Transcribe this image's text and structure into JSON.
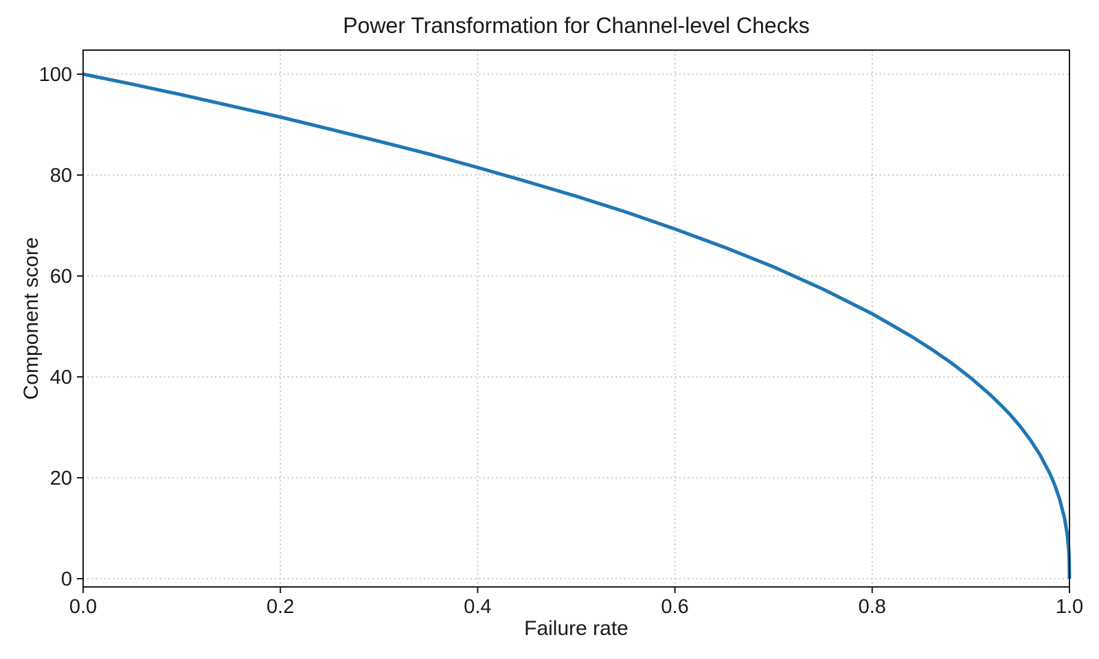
{
  "chart_data": {
    "type": "line",
    "title": "Power Transformation for Channel-level Checks",
    "xlabel": "Failure rate",
    "ylabel": "Component score",
    "xlim": [
      0.0,
      1.0
    ],
    "ylim": [
      -2,
      105
    ],
    "xticks": [
      0.0,
      0.2,
      0.4,
      0.6,
      0.8,
      1.0
    ],
    "xtick_labels": [
      "0.0",
      "0.2",
      "0.4",
      "0.6",
      "0.8",
      "1.0"
    ],
    "yticks": [
      0,
      20,
      40,
      60,
      80,
      100
    ],
    "ytick_labels": [
      "0",
      "20",
      "40",
      "60",
      "80",
      "100"
    ],
    "grid": true,
    "grid_style": "dotted",
    "legend": false,
    "line_color": "#1f77b4",
    "line_width": 5,
    "power_exponent": 0.4,
    "series": [
      {
        "points": [
          [
            0.0,
            100.0
          ],
          [
            0.05,
            98.0
          ],
          [
            0.1,
            95.9
          ],
          [
            0.15,
            93.7
          ],
          [
            0.2,
            91.5
          ],
          [
            0.25,
            89.1
          ],
          [
            0.3,
            86.7
          ],
          [
            0.35,
            84.2
          ],
          [
            0.4,
            81.5
          ],
          [
            0.45,
            78.7
          ],
          [
            0.5,
            75.8
          ],
          [
            0.55,
            72.7
          ],
          [
            0.6,
            69.3
          ],
          [
            0.65,
            65.7
          ],
          [
            0.7,
            61.8
          ],
          [
            0.75,
            57.4
          ],
          [
            0.8,
            52.5
          ],
          [
            0.84,
            48.0
          ],
          [
            0.86,
            45.5
          ],
          [
            0.88,
            42.8
          ],
          [
            0.9,
            39.8
          ],
          [
            0.92,
            36.4
          ],
          [
            0.93,
            34.5
          ],
          [
            0.94,
            32.5
          ],
          [
            0.95,
            30.2
          ],
          [
            0.96,
            27.6
          ],
          [
            0.97,
            24.6
          ],
          [
            0.98,
            20.9
          ],
          [
            0.985,
            18.6
          ],
          [
            0.99,
            15.8
          ],
          [
            0.995,
            12.0
          ],
          [
            0.9975,
            9.1
          ],
          [
            0.998,
            8.3
          ],
          [
            0.999,
            6.3
          ],
          [
            0.9995,
            4.8
          ],
          [
            0.99975,
            3.6
          ],
          [
            1.0,
            0.0
          ]
        ]
      }
    ],
    "colors": {
      "line": "#1f77b4",
      "grid": "#c2c2c2",
      "spine": "#1a1a1a",
      "text": "#1a1a1a",
      "background": "#ffffff"
    }
  }
}
